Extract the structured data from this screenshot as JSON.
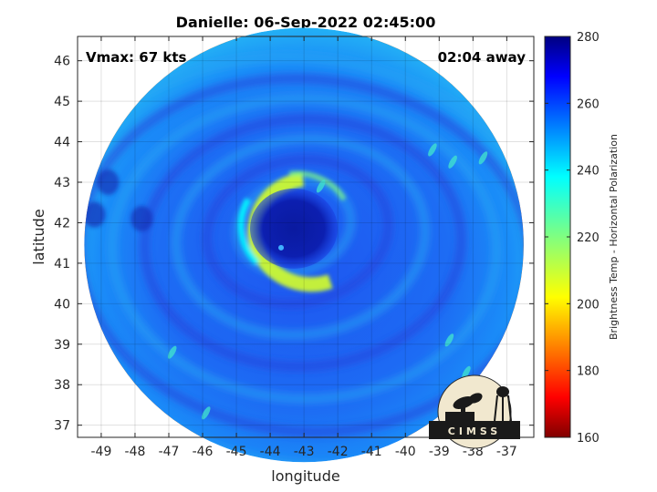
{
  "chart_data": {
    "type": "heatmap",
    "title": "Danielle: 06-Sep-2022 02:45:00",
    "xlabel": "longitude",
    "ylabel": "latitude",
    "xlim": [
      -49.7,
      -36.2
    ],
    "ylim": [
      36.7,
      46.6
    ],
    "x_ticks": [
      -49,
      -48,
      -47,
      -46,
      -45,
      -44,
      -43,
      -42,
      -41,
      -40,
      -39,
      -38,
      -37
    ],
    "y_ticks": [
      37,
      38,
      39,
      40,
      41,
      42,
      43,
      44,
      45,
      46
    ],
    "grid": true,
    "annotations": {
      "left": "Vmax: 67 kts",
      "right": "02:04 away"
    },
    "colorbar": {
      "label": "Brightness Temp - Horizontal Polarization",
      "min": 160,
      "max": 280,
      "ticks": [
        160,
        180,
        200,
        220,
        240,
        260,
        280
      ],
      "colormap": "jet"
    },
    "swath": {
      "center_lon": -43.0,
      "center_lat": 41.0,
      "radius_deg_lon": 6.5,
      "background_value": 252
    },
    "eye": {
      "center_lon": -43.3,
      "center_lat": 41.9,
      "value": 266
    },
    "eyewall": {
      "arc": "west",
      "min_value": 205,
      "typical_value": 230
    },
    "logo": "CIMSS"
  }
}
